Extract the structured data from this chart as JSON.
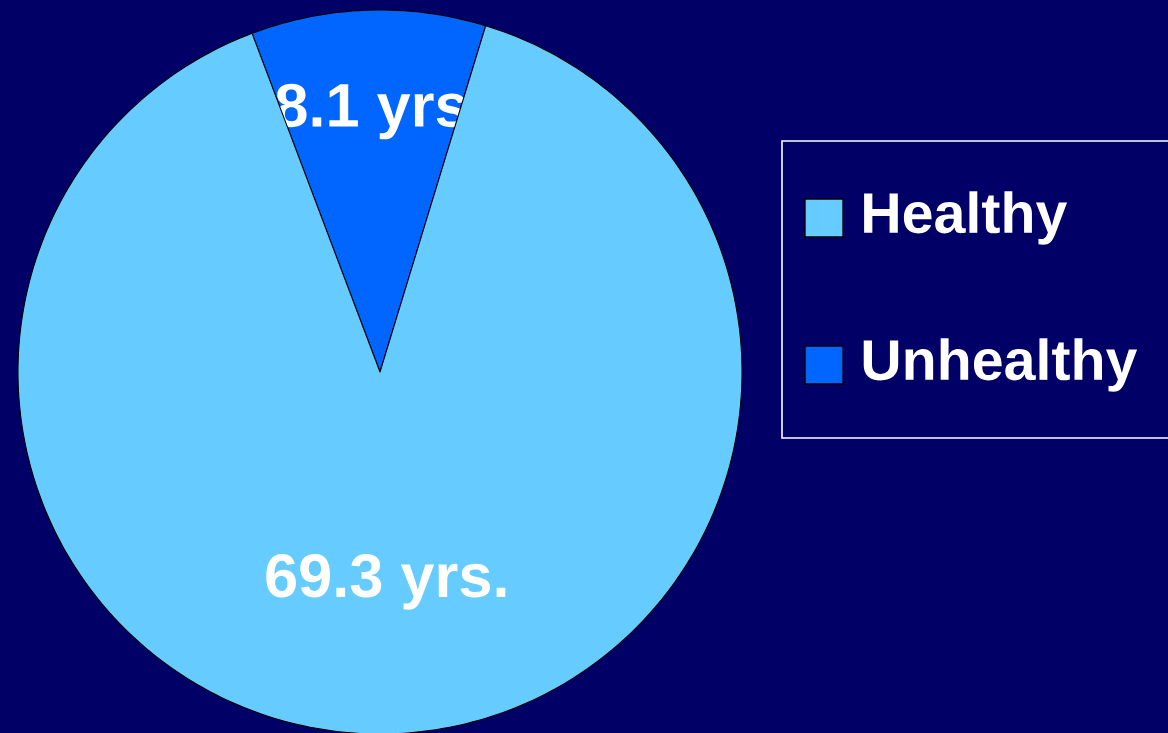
{
  "chart_data": {
    "type": "pie",
    "categories": [
      "Healthy",
      "Unhealthy"
    ],
    "values": [
      69.3,
      8.1
    ],
    "colors": [
      "#66ccff",
      "#0066ff"
    ],
    "value_labels": [
      "69.3 yrs.",
      "8.1 yrs"
    ],
    "legend": "right"
  }
}
